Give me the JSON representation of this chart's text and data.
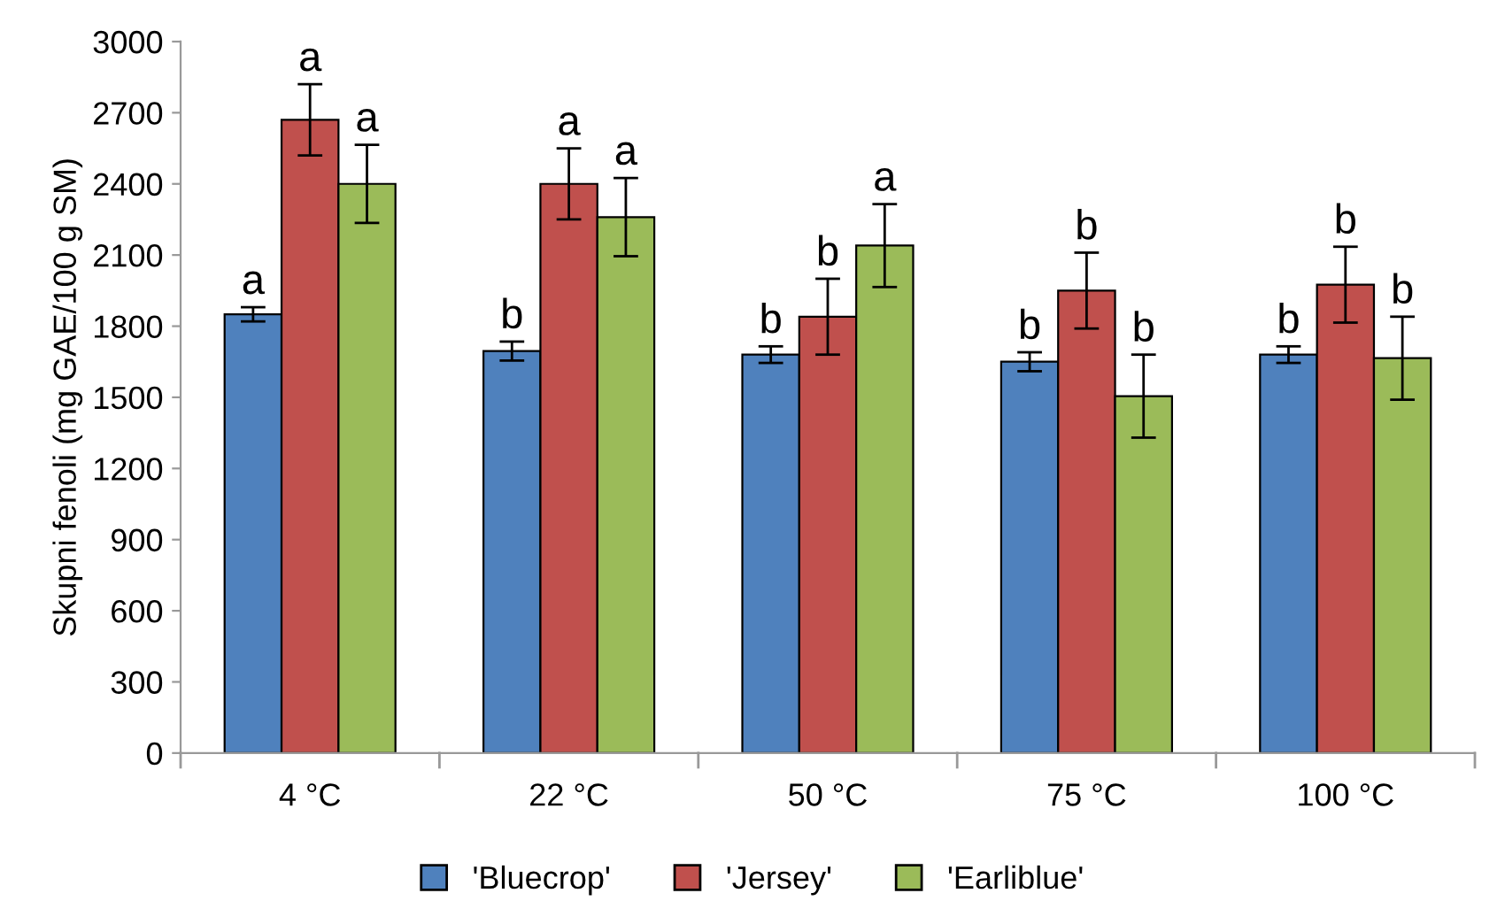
{
  "chart_data": {
    "type": "bar",
    "ylabel": "Skupni fenoli (mg GAE/100 g SM)",
    "categories": [
      "4 °C",
      "22 °C",
      "50 °C",
      "75 °C",
      "100 °C"
    ],
    "series": [
      {
        "name": "'Bluecrop'",
        "color": "#4f81bd",
        "values": [
          1850,
          1695,
          1680,
          1650,
          1680
        ],
        "errors": [
          30,
          40,
          35,
          40,
          35
        ],
        "value_labels": [
          "a",
          "b",
          "b",
          "b",
          "b"
        ]
      },
      {
        "name": "'Jersey'",
        "color": "#c0504d",
        "values": [
          2670,
          2400,
          1840,
          1950,
          1975
        ],
        "errors": [
          150,
          150,
          160,
          160,
          160
        ],
        "value_labels": [
          "a",
          "a",
          "b",
          "b",
          "b"
        ]
      },
      {
        "name": "'Earliblue'",
        "color": "#9bbb59",
        "values": [
          2400,
          2260,
          2140,
          1505,
          1665
        ],
        "errors": [
          165,
          165,
          175,
          175,
          175
        ],
        "value_labels": [
          "a",
          "a",
          "a",
          "b",
          "b"
        ]
      }
    ],
    "ylim": [
      0,
      3000
    ],
    "yticks": [
      0,
      300,
      600,
      900,
      1200,
      1500,
      1800,
      2100,
      2400,
      2700,
      3000
    ],
    "grid": false,
    "legend": "bottom"
  }
}
